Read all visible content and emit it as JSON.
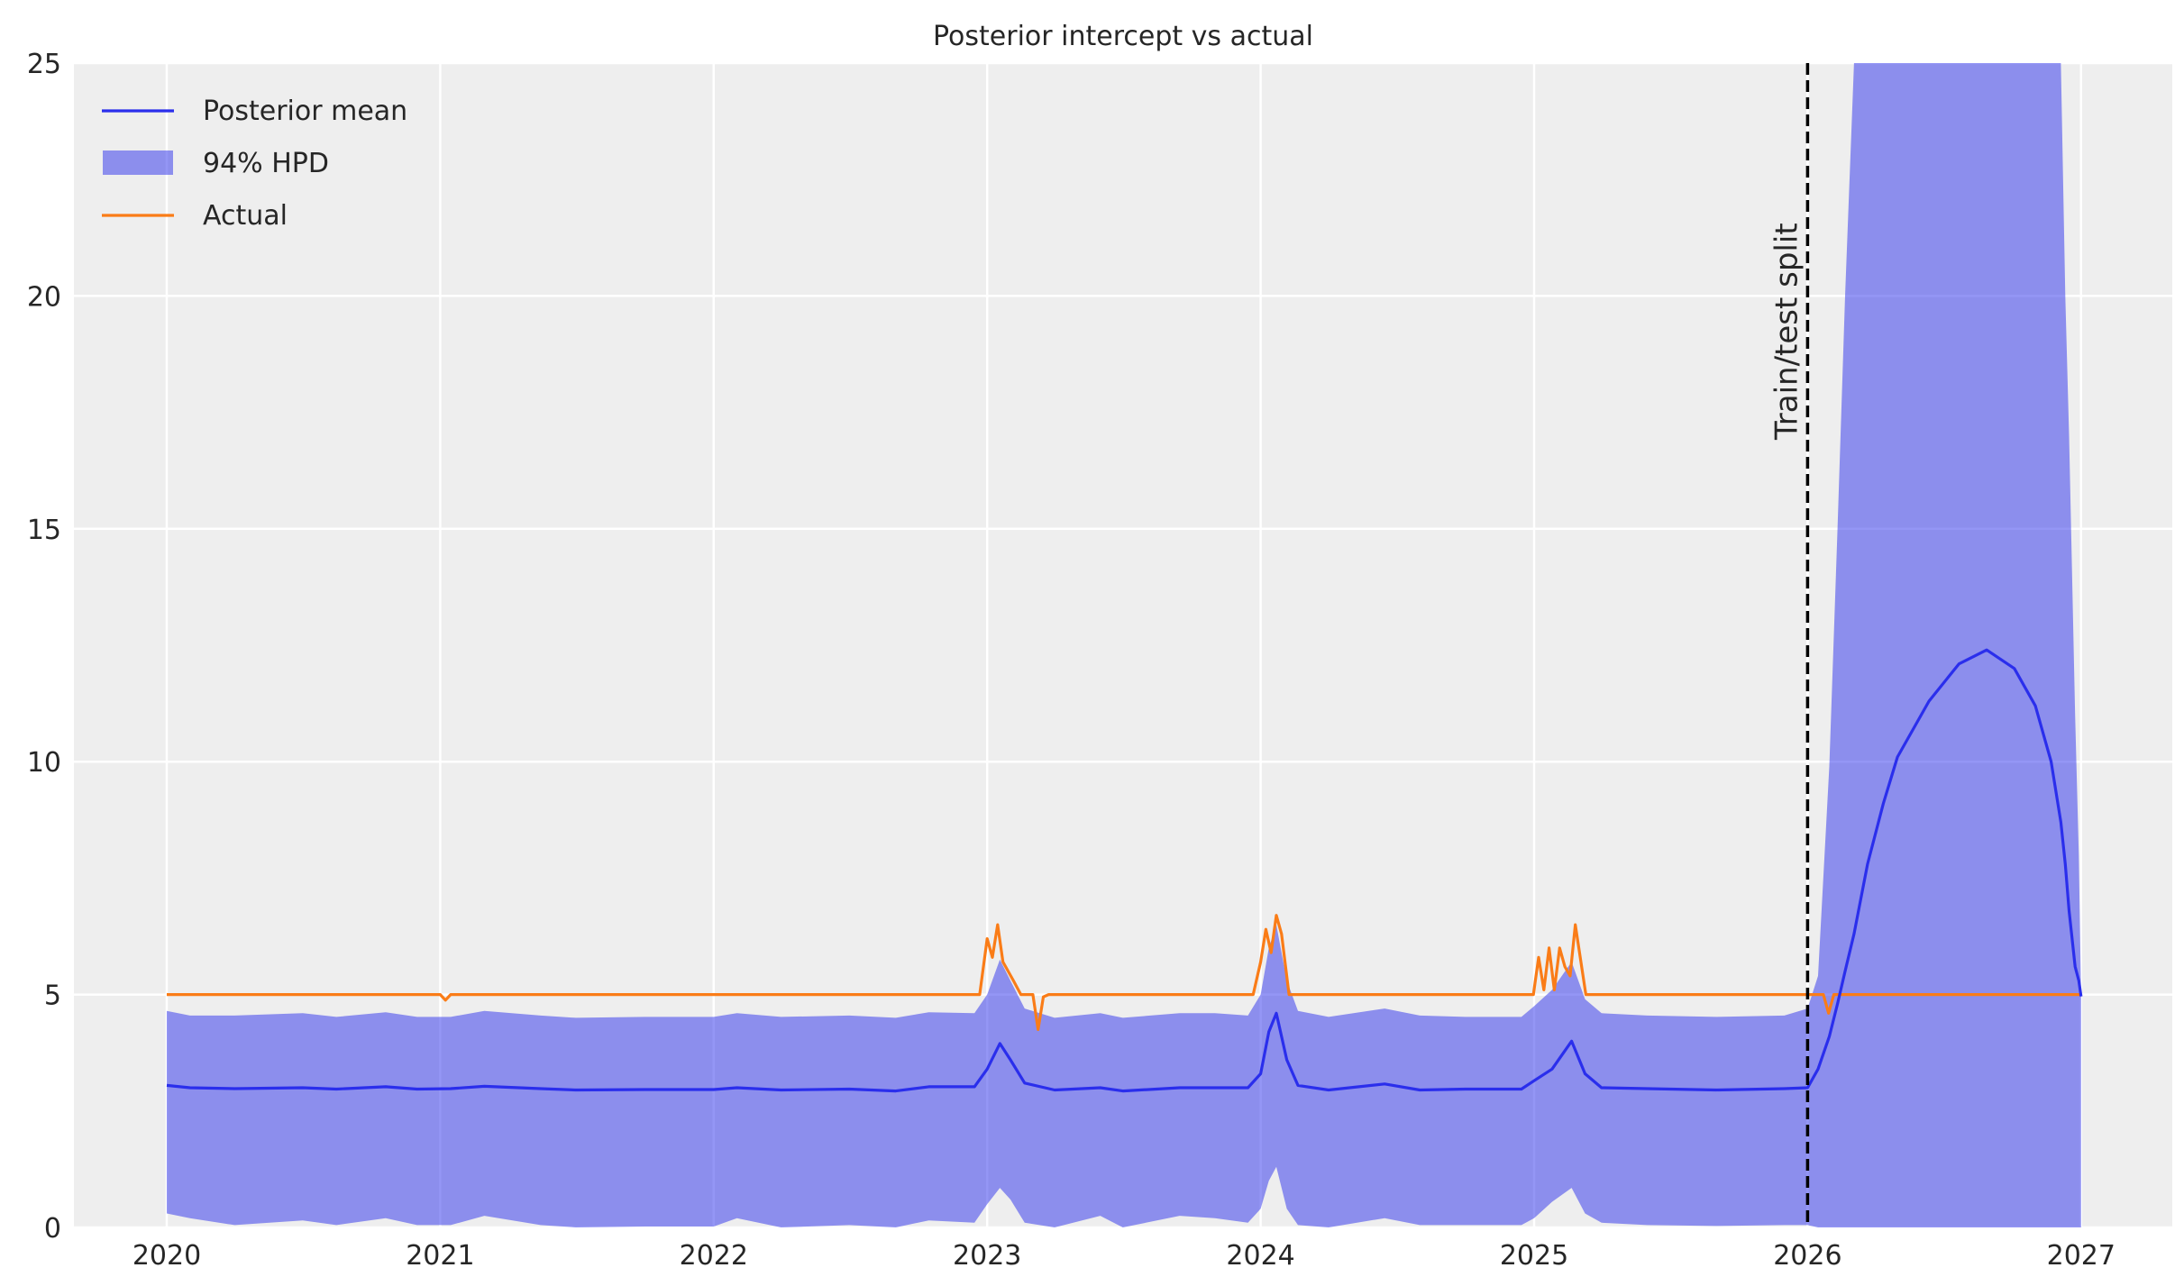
{
  "chart_data": {
    "type": "line",
    "title": "Posterior intercept vs actual",
    "xlabel": "",
    "ylabel": "",
    "xlim": [
      "2019-09-01",
      "2027-04-15"
    ],
    "ylim": [
      0,
      25
    ],
    "grid": true,
    "legend_position": "top-left",
    "x_ticks": [
      "2020",
      "2021",
      "2022",
      "2023",
      "2024",
      "2025",
      "2026",
      "2027"
    ],
    "y_ticks": [
      "0",
      "5",
      "10",
      "15",
      "20",
      "25"
    ],
    "colors": {
      "mean": "#2a2eec",
      "hpd": "#2a2eec",
      "actual": "#fa7c17",
      "split": "#000000",
      "background": "#eeeeee"
    },
    "legend": {
      "mean": "Posterior mean",
      "hpd": "94% HPD",
      "actual": "Actual"
    },
    "annotation": {
      "label": "Train/test split",
      "x": "2026-01-01"
    },
    "posterior": {
      "x": [
        "2020-01-01",
        "2020-02-01",
        "2020-04-01",
        "2020-07-01",
        "2020-08-15",
        "2020-10-20",
        "2020-12-01",
        "2021-01-15",
        "2021-03-01",
        "2021-05-15",
        "2021-07-01",
        "2021-10-01",
        "2022-01-01",
        "2022-02-01",
        "2022-04-01",
        "2022-07-01",
        "2022-09-01",
        "2022-10-15",
        "2022-12-15",
        "2023-01-01",
        "2023-01-18",
        "2023-02-01",
        "2023-02-20",
        "2023-04-01",
        "2023-06-01",
        "2023-07-01",
        "2023-09-15",
        "2023-11-01",
        "2023-12-15",
        "2024-01-01",
        "2024-01-12",
        "2024-01-22",
        "2024-02-05",
        "2024-02-20",
        "2024-04-01",
        "2024-06-15",
        "2024-08-01",
        "2024-10-01",
        "2024-12-15",
        "2025-01-01",
        "2025-01-25",
        "2025-02-20",
        "2025-03-10",
        "2025-04-01",
        "2025-06-01",
        "2025-09-01",
        "2025-12-01",
        "2026-01-01",
        "2026-01-15",
        "2026-01-30",
        "2026-02-10",
        "2026-02-20",
        "2026-03-04",
        "2026-03-22",
        "2026-04-12",
        "2026-05-01",
        "2026-06-12",
        "2026-07-22",
        "2026-08-28",
        "2026-10-04",
        "2026-11-01",
        "2026-11-22",
        "2026-12-05",
        "2026-12-11",
        "2026-12-16",
        "2026-12-24",
        "2026-12-29",
        "2027-01-01"
      ],
      "mean": [
        3.05,
        3.0,
        2.98,
        3.0,
        2.97,
        3.02,
        2.97,
        2.98,
        3.03,
        2.98,
        2.95,
        2.96,
        2.96,
        3.0,
        2.95,
        2.97,
        2.93,
        3.02,
        3.02,
        3.4,
        3.95,
        3.6,
        3.1,
        2.95,
        3.0,
        2.93,
        3.0,
        3.0,
        3.0,
        3.3,
        4.2,
        4.6,
        3.6,
        3.05,
        2.95,
        3.08,
        2.95,
        2.97,
        2.97,
        3.15,
        3.4,
        4.0,
        3.3,
        3.0,
        2.98,
        2.95,
        2.98,
        3.0,
        3.4,
        4.1,
        4.8,
        5.5,
        6.3,
        7.8,
        9.1,
        10.1,
        11.3,
        12.1,
        12.4,
        12.0,
        11.2,
        10.0,
        8.7,
        7.8,
        6.8,
        5.6,
        5.3,
        4.96
      ],
      "hpd_lower": [
        0.3,
        0.2,
        0.05,
        0.15,
        0.05,
        0.2,
        0.05,
        0.05,
        0.25,
        0.05,
        0.0,
        0.02,
        0.02,
        0.2,
        0.0,
        0.05,
        0.0,
        0.15,
        0.1,
        0.5,
        0.85,
        0.6,
        0.1,
        0.0,
        0.25,
        0.0,
        0.25,
        0.2,
        0.1,
        0.4,
        1.0,
        1.3,
        0.4,
        0.05,
        0.0,
        0.2,
        0.05,
        0.05,
        0.05,
        0.2,
        0.55,
        0.85,
        0.3,
        0.1,
        0.05,
        0.03,
        0.05,
        0.05,
        0,
        0,
        0,
        0,
        0,
        0,
        0,
        0,
        0,
        0,
        0,
        0,
        0,
        0,
        0,
        0,
        0,
        0,
        0,
        0
      ],
      "hpd_upper": [
        4.65,
        4.55,
        4.55,
        4.6,
        4.52,
        4.62,
        4.52,
        4.52,
        4.65,
        4.55,
        4.5,
        4.52,
        4.52,
        4.6,
        4.52,
        4.55,
        4.5,
        4.62,
        4.6,
        5.0,
        5.75,
        5.3,
        4.7,
        4.5,
        4.6,
        4.5,
        4.6,
        4.6,
        4.55,
        5.0,
        6.0,
        6.5,
        5.3,
        4.65,
        4.52,
        4.7,
        4.55,
        4.52,
        4.52,
        4.75,
        5.1,
        5.7,
        4.9,
        4.6,
        4.55,
        4.52,
        4.55,
        4.7,
        5.4,
        9.9,
        15,
        20,
        25,
        25,
        25,
        25,
        25,
        25,
        25,
        25,
        25,
        25,
        25,
        20,
        17,
        11,
        8,
        5
      ]
    },
    "actual": {
      "x": [
        "2020-01-01",
        "2021-01-01",
        "2021-01-08",
        "2021-01-15",
        "2022-12-22",
        "2023-01-01",
        "2023-01-08",
        "2023-01-15",
        "2023-01-22",
        "2023-02-05",
        "2023-02-15",
        "2023-03-03",
        "2023-03-10",
        "2023-03-17",
        "2023-03-24",
        "2023-12-22",
        "2024-01-01",
        "2024-01-08",
        "2024-01-15",
        "2024-01-22",
        "2024-01-29",
        "2024-02-08",
        "2024-12-31",
        "2025-01-07",
        "2025-01-14",
        "2025-01-21",
        "2025-01-28",
        "2025-02-04",
        "2025-02-11",
        "2025-02-18",
        "2025-02-25",
        "2025-03-11",
        "2026-01-22",
        "2026-01-29",
        "2026-02-05",
        "2027-01-01"
      ],
      "values": [
        5,
        5,
        4.88,
        5,
        5,
        6.2,
        5.8,
        6.5,
        5.7,
        5.3,
        5.0,
        5.0,
        4.25,
        4.95,
        5,
        5,
        5.7,
        6.4,
        5.9,
        6.7,
        6.3,
        5.0,
        5,
        5.8,
        5.1,
        6.0,
        5.1,
        6.0,
        5.6,
        5.4,
        6.5,
        5.0,
        5.0,
        4.6,
        5.0,
        5.0
      ]
    }
  }
}
